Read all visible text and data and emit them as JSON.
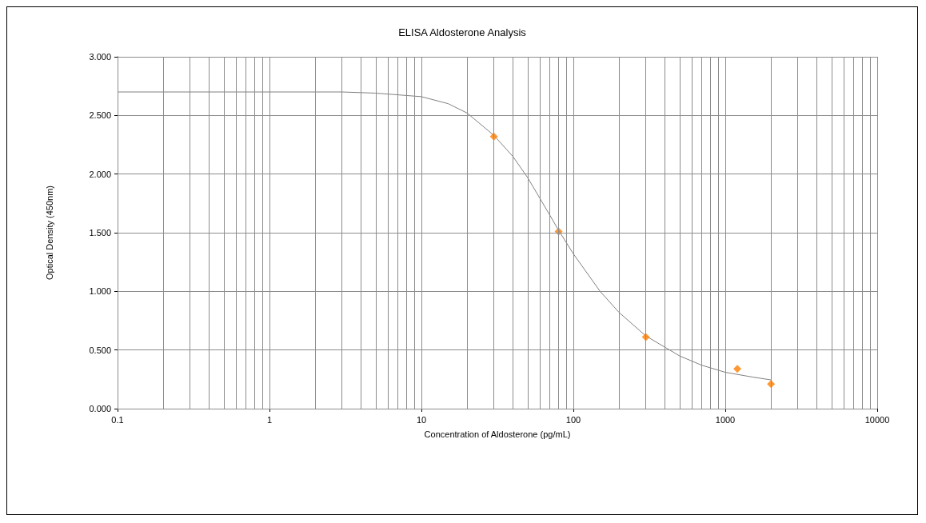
{
  "chart_data": {
    "type": "scatter",
    "title": "ELISA Aldosterone Analysis",
    "xlabel": "Concentration of Aldosterone (pg/mL)",
    "ylabel": "Optical Density (450nm)",
    "log": "x",
    "grid": true,
    "marker": "diamond",
    "xlim": [
      0.1,
      10000
    ],
    "ylim": [
      0,
      3
    ],
    "xticks": [
      0.1,
      {
        "value": 0.2,
        "label": null
      },
      {
        "value": 0.3,
        "label": null
      },
      {
        "value": 0.4,
        "label": null
      },
      {
        "value": 0.5,
        "label": null
      },
      {
        "value": 0.6,
        "label": null
      },
      {
        "value": 0.7,
        "label": null
      },
      {
        "value": 0.8,
        "label": null
      },
      {
        "value": 0.9,
        "label": null
      },
      1,
      {
        "value": 2,
        "label": null
      },
      {
        "value": 3,
        "label": null
      },
      {
        "value": 4,
        "label": null
      },
      {
        "value": 5,
        "label": null
      },
      {
        "value": 6,
        "label": null
      },
      {
        "value": 7,
        "label": null
      },
      {
        "value": 8,
        "label": null
      },
      {
        "value": 9,
        "label": null
      },
      10,
      {
        "value": 20,
        "label": null
      },
      {
        "value": 30,
        "label": null
      },
      {
        "value": 40,
        "label": null
      },
      {
        "value": 50,
        "label": null
      },
      {
        "value": 60,
        "label": null
      },
      {
        "value": 70,
        "label": null
      },
      {
        "value": 80,
        "label": null
      },
      {
        "value": 90,
        "label": null
      },
      100,
      {
        "value": 200,
        "label": null
      },
      {
        "value": 300,
        "label": null
      },
      {
        "value": 400,
        "label": null
      },
      {
        "value": 500,
        "label": null
      },
      {
        "value": 600,
        "label": null
      },
      {
        "value": 700,
        "label": null
      },
      {
        "value": 800,
        "label": null
      },
      {
        "value": 900,
        "label": null
      },
      1000,
      {
        "value": 2000,
        "label": null
      },
      {
        "value": 3000,
        "label": null
      },
      {
        "value": 4000,
        "label": null
      },
      {
        "value": 5000,
        "label": null
      },
      {
        "value": 6000,
        "label": null
      },
      {
        "value": 7000,
        "label": null
      },
      {
        "value": 8000,
        "label": null
      },
      {
        "value": 9000,
        "label": null
      },
      10000
    ],
    "yticks": [
      {
        "value": 0,
        "label": "0.000"
      },
      {
        "value": 0.5,
        "label": "0.500"
      },
      {
        "value": 1,
        "label": "1.000"
      },
      {
        "value": 1.5,
        "label": "1.500"
      },
      {
        "value": 2,
        "label": "2.000"
      },
      {
        "value": 2.5,
        "label": "2.500"
      },
      {
        "value": 3,
        "label": "3.000"
      }
    ],
    "series": [
      {
        "type": "line",
        "color": "#808080",
        "marker": "none",
        "x": [
          0.1,
          1,
          3,
          5,
          10,
          15,
          20,
          30,
          40,
          50,
          70,
          80,
          100,
          150,
          200,
          300,
          500,
          700,
          1000,
          1500,
          2000
        ],
        "values": [
          2.7,
          2.7,
          2.7,
          2.69,
          2.66,
          2.6,
          2.52,
          2.33,
          2.15,
          1.97,
          1.65,
          1.52,
          1.32,
          1.0,
          0.82,
          0.62,
          0.45,
          0.37,
          0.31,
          0.27,
          0.245
        ]
      },
      {
        "color": "#ff7f00",
        "x": [
          30,
          80,
          300,
          1200,
          2000
        ],
        "values": [
          2.32,
          1.51,
          0.61,
          0.34,
          0.21
        ]
      }
    ]
  }
}
